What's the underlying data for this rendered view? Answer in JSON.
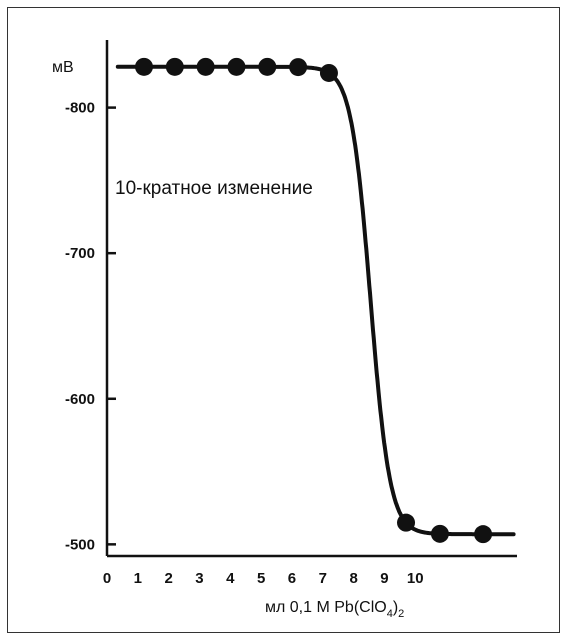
{
  "chart_data": {
    "type": "line",
    "title": "",
    "ylabel": "мВ",
    "xlabel_parts": {
      "main": "мл 0,1 M Pb(ClO",
      "sub1": "4",
      "mid": ")",
      "sub2": "2"
    },
    "annotation": "10-кратное изменение",
    "x_ticks": [
      "0",
      "1",
      "2",
      "3",
      "4",
      "5",
      "6",
      "7",
      "8",
      "9",
      "10"
    ],
    "y_ticks": [
      "-800",
      "-700",
      "-600",
      "-500"
    ],
    "xlim": [
      0,
      13.3
    ],
    "ylim": [
      -492,
      -843
    ],
    "series": [
      {
        "points": [
          {
            "x": 1.2,
            "y": -828
          },
          {
            "x": 2.2,
            "y": -827
          },
          {
            "x": 3.2,
            "y": -825
          },
          {
            "x": 4.2,
            "y": -822
          },
          {
            "x": 5.2,
            "y": -813
          },
          {
            "x": 6.2,
            "y": -803
          },
          {
            "x": 7.2,
            "y": -777
          },
          {
            "x": 9.7,
            "y": -531
          },
          {
            "x": 10.8,
            "y": -514
          },
          {
            "x": 12.2,
            "y": -507
          }
        ]
      }
    ]
  }
}
